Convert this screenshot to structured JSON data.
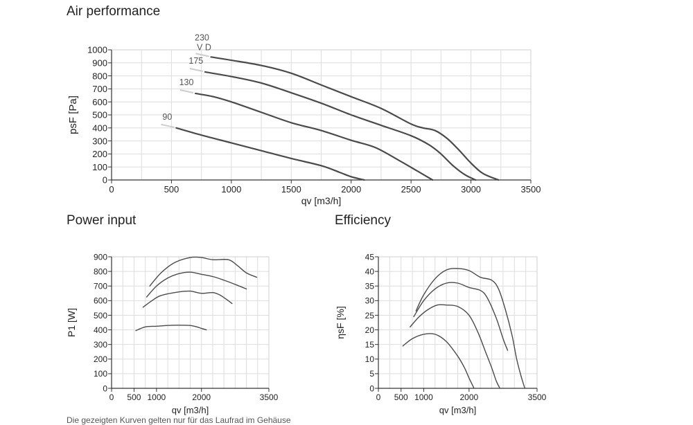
{
  "sections": {
    "air": "Air performance",
    "power": "Power input",
    "efficiency": "Efficiency"
  },
  "footnote": "Die gezeigten Kurven gelten nur für das Laufrad im Gehäuse",
  "colors": {
    "curve": "#4a4a4a",
    "grid": "#dddddd",
    "axis": "#333333"
  },
  "chart_data": [
    {
      "id": "air",
      "type": "line",
      "title": "Air performance",
      "xlabel": "qv [m3/h]",
      "ylabel": "psF [Pa]",
      "xlim": [
        0,
        3500
      ],
      "ylim": [
        0,
        1000
      ],
      "xticks": [
        0,
        500,
        1000,
        1500,
        2000,
        2500,
        3000,
        3500
      ],
      "yticks": [
        0,
        100,
        200,
        300,
        400,
        500,
        600,
        700,
        800,
        900,
        1000
      ],
      "grid": true,
      "series": [
        {
          "name": "230",
          "label": "230",
          "sublabel": "V D",
          "points": [
            [
              830,
              945
            ],
            [
              1000,
              920
            ],
            [
              1250,
              880
            ],
            [
              1500,
              820
            ],
            [
              1750,
              730
            ],
            [
              2000,
              640
            ],
            [
              2250,
              550
            ],
            [
              2500,
              430
            ],
            [
              2600,
              400
            ],
            [
              2700,
              380
            ],
            [
              2800,
              320
            ],
            [
              2900,
              230
            ],
            [
              3000,
              130
            ],
            [
              3100,
              50
            ],
            [
              3230,
              0
            ]
          ]
        },
        {
          "name": "175",
          "label": "175",
          "points": [
            [
              780,
              830
            ],
            [
              1000,
              795
            ],
            [
              1250,
              745
            ],
            [
              1500,
              670
            ],
            [
              1750,
              590
            ],
            [
              2000,
              500
            ],
            [
              2250,
              420
            ],
            [
              2500,
              340
            ],
            [
              2650,
              270
            ],
            [
              2750,
              200
            ],
            [
              2850,
              110
            ],
            [
              2950,
              40
            ],
            [
              3040,
              0
            ]
          ]
        },
        {
          "name": "130",
          "label": "130",
          "points": [
            [
              700,
              665
            ],
            [
              850,
              640
            ],
            [
              1000,
              600
            ],
            [
              1250,
              520
            ],
            [
              1500,
              440
            ],
            [
              1750,
              380
            ],
            [
              2000,
              305
            ],
            [
              2200,
              250
            ],
            [
              2400,
              150
            ],
            [
              2550,
              70
            ],
            [
              2680,
              0
            ]
          ]
        },
        {
          "name": "90",
          "label": "90",
          "points": [
            [
              540,
              400
            ],
            [
              750,
              345
            ],
            [
              1000,
              285
            ],
            [
              1250,
              225
            ],
            [
              1500,
              165
            ],
            [
              1750,
              110
            ],
            [
              1900,
              60
            ],
            [
              2000,
              25
            ],
            [
              2110,
              0
            ]
          ]
        }
      ]
    },
    {
      "id": "power",
      "type": "line",
      "title": "Power input",
      "xlabel": "qv [m3/h]",
      "ylabel": "P1 [W]",
      "xlim": [
        0,
        3500
      ],
      "ylim": [
        0,
        900
      ],
      "xticks": [
        0,
        500,
        1000,
        2000,
        3500
      ],
      "yticks": [
        0,
        100,
        200,
        300,
        400,
        500,
        600,
        700,
        800,
        900
      ],
      "grid": true,
      "series": [
        {
          "name": "230",
          "points": [
            [
              850,
              700
            ],
            [
              1100,
              790
            ],
            [
              1400,
              860
            ],
            [
              1750,
              895
            ],
            [
              2000,
              895
            ],
            [
              2250,
              880
            ],
            [
              2600,
              880
            ],
            [
              2800,
              840
            ],
            [
              3000,
              790
            ],
            [
              3230,
              760
            ]
          ]
        },
        {
          "name": "175",
          "points": [
            [
              780,
              625
            ],
            [
              1000,
              700
            ],
            [
              1250,
              755
            ],
            [
              1500,
              785
            ],
            [
              1750,
              795
            ],
            [
              2000,
              780
            ],
            [
              2250,
              765
            ],
            [
              2500,
              740
            ],
            [
              2800,
              705
            ],
            [
              3000,
              680
            ]
          ]
        },
        {
          "name": "130",
          "points": [
            [
              700,
              555
            ],
            [
              900,
              600
            ],
            [
              1100,
              635
            ],
            [
              1500,
              660
            ],
            [
              1750,
              665
            ],
            [
              2000,
              650
            ],
            [
              2250,
              655
            ],
            [
              2400,
              640
            ],
            [
              2550,
              610
            ],
            [
              2680,
              580
            ]
          ]
        },
        {
          "name": "90",
          "points": [
            [
              540,
              395
            ],
            [
              750,
              420
            ],
            [
              1000,
              425
            ],
            [
              1250,
              430
            ],
            [
              1500,
              432
            ],
            [
              1750,
              430
            ],
            [
              1900,
              420
            ],
            [
              2000,
              410
            ],
            [
              2110,
              400
            ]
          ]
        }
      ]
    },
    {
      "id": "efficiency",
      "type": "line",
      "title": "Efficiency",
      "xlabel": "qv [m3/h]",
      "ylabel": "ηsF [%]",
      "xlim": [
        0,
        3500
      ],
      "ylim": [
        0,
        45
      ],
      "xticks": [
        0,
        500,
        1000,
        2000,
        3500
      ],
      "yticks": [
        0,
        5,
        10,
        15,
        20,
        25,
        30,
        35,
        40,
        45
      ],
      "grid": true,
      "series": [
        {
          "name": "230",
          "points": [
            [
              830,
              26.5
            ],
            [
              1000,
              32
            ],
            [
              1250,
              37.5
            ],
            [
              1500,
              40.5
            ],
            [
              1750,
              41
            ],
            [
              2000,
              40.3
            ],
            [
              2250,
              38
            ],
            [
              2500,
              37
            ],
            [
              2650,
              34
            ],
            [
              2800,
              27
            ],
            [
              2950,
              18
            ],
            [
              3050,
              10
            ],
            [
              3150,
              4
            ],
            [
              3230,
              0
            ]
          ]
        },
        {
          "name": "175",
          "points": [
            [
              780,
              24.5
            ],
            [
              1000,
              30
            ],
            [
              1250,
              34
            ],
            [
              1500,
              36
            ],
            [
              1750,
              36
            ],
            [
              2000,
              34.5
            ],
            [
              2250,
              33.5
            ],
            [
              2400,
              31
            ],
            [
              2600,
              24
            ],
            [
              2750,
              17
            ],
            [
              2850,
              13
            ]
          ]
        },
        {
          "name": "130",
          "points": [
            [
              700,
              21
            ],
            [
              900,
              24.5
            ],
            [
              1100,
              27
            ],
            [
              1300,
              28.5
            ],
            [
              1500,
              28.5
            ],
            [
              1750,
              28
            ],
            [
              2000,
              25
            ],
            [
              2200,
              19
            ],
            [
              2350,
              13
            ],
            [
              2500,
              7
            ],
            [
              2600,
              2.5
            ],
            [
              2680,
              0
            ]
          ]
        },
        {
          "name": "90",
          "points": [
            [
              540,
              14.5
            ],
            [
              750,
              17
            ],
            [
              1000,
              18.5
            ],
            [
              1250,
              18.5
            ],
            [
              1500,
              16
            ],
            [
              1750,
              11
            ],
            [
              1900,
              7
            ],
            [
              2000,
              3.5
            ],
            [
              2110,
              0
            ]
          ]
        }
      ]
    }
  ]
}
